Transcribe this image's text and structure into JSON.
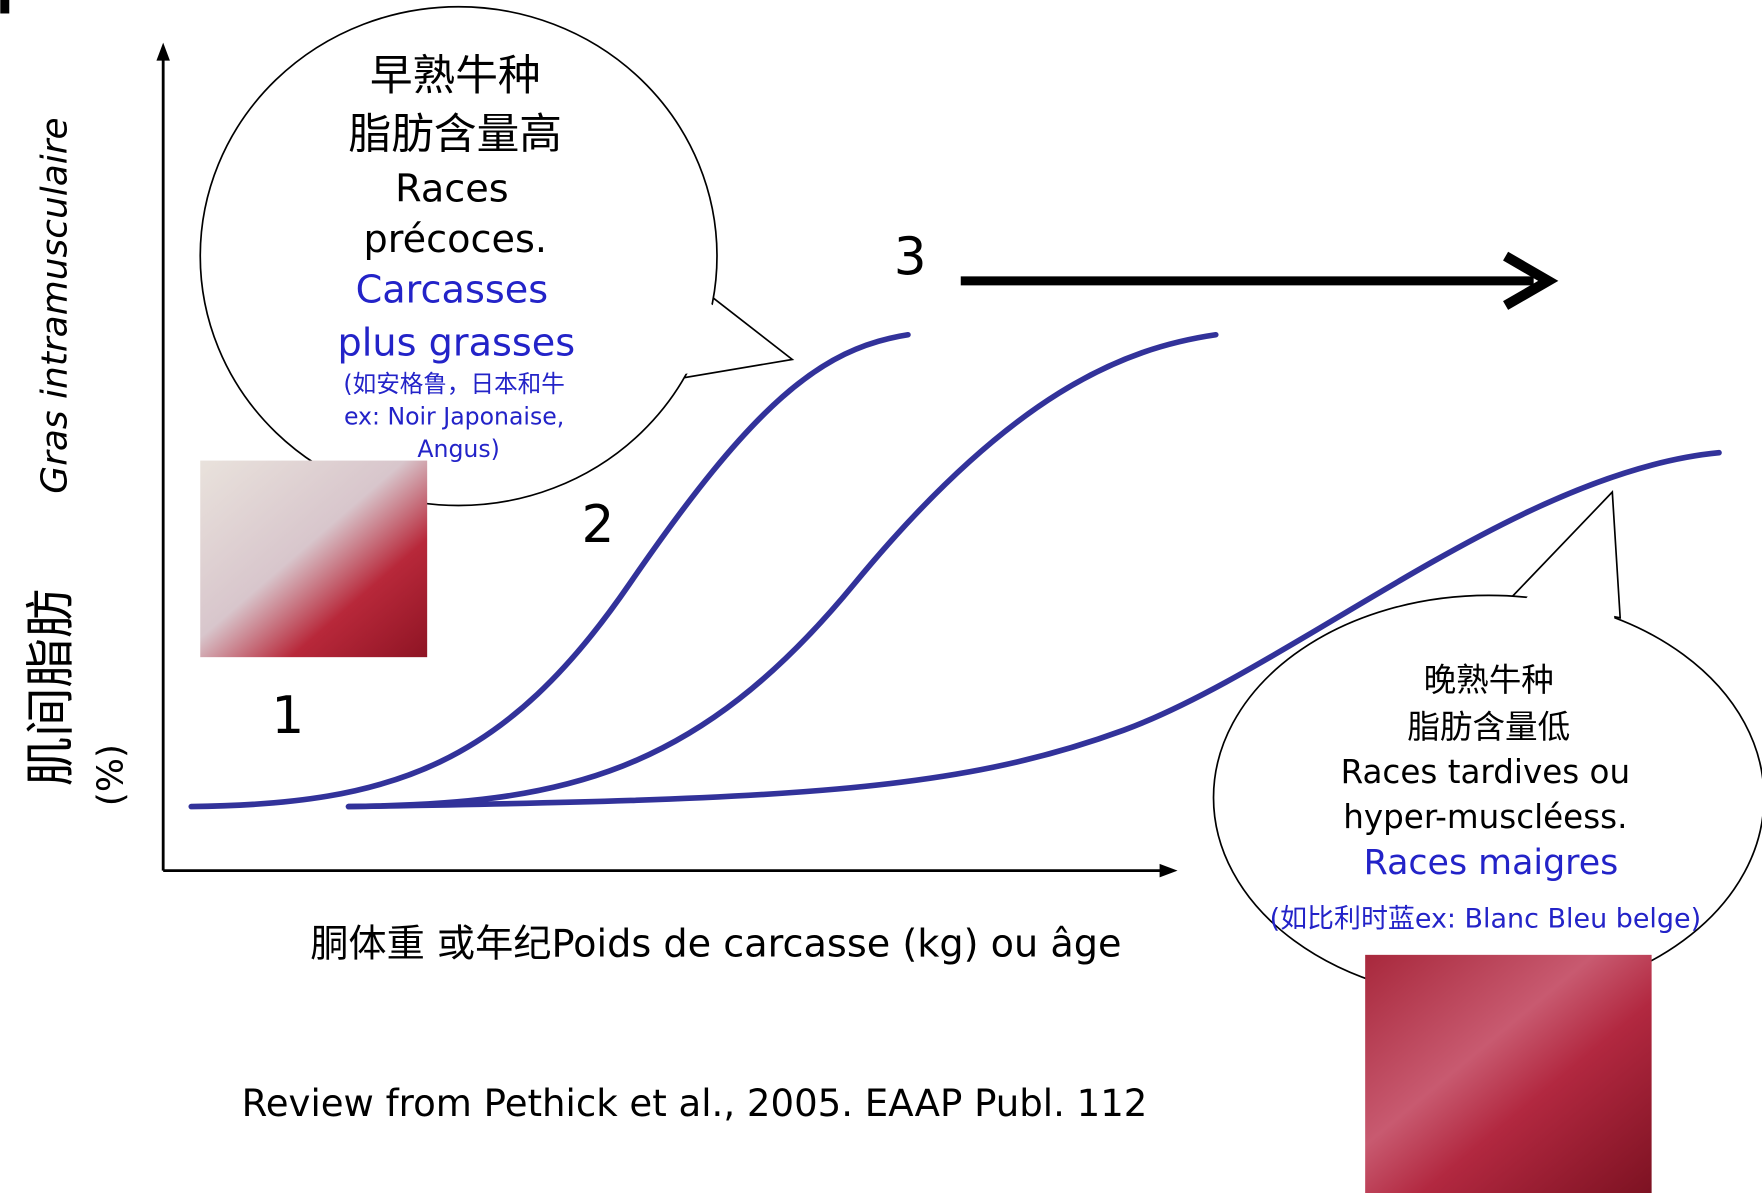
{
  "y_axis": {
    "label_fr": "Gras intramusculaire",
    "label_zh": "肌间脂肪",
    "unit": "(%)"
  },
  "x_axis": {
    "label": "胴体重 或年纪Poids de carcasse (kg) ou âge"
  },
  "curve_labels": [
    "1",
    "2",
    "3"
  ],
  "callout_early": {
    "lines": [
      "早熟牛种",
      "脂肪含量高",
      "Races",
      "précoces."
    ],
    "highlight": [
      "Carcasses",
      "plus grasses"
    ],
    "example": [
      "(如安格鲁，日本和牛",
      "ex: Noir Japonaise,",
      "Angus)"
    ]
  },
  "callout_late": {
    "lines": [
      "晚熟牛种",
      "脂肪含量低",
      "Races tardives ou",
      "hyper-muscléess."
    ],
    "highlight": [
      "Races maigres"
    ],
    "example": [
      "(如比利时蓝ex: Blanc Bleu belge)"
    ]
  },
  "citation": "Review from Pethick et al., 2005. EAAP Publ. 112"
}
